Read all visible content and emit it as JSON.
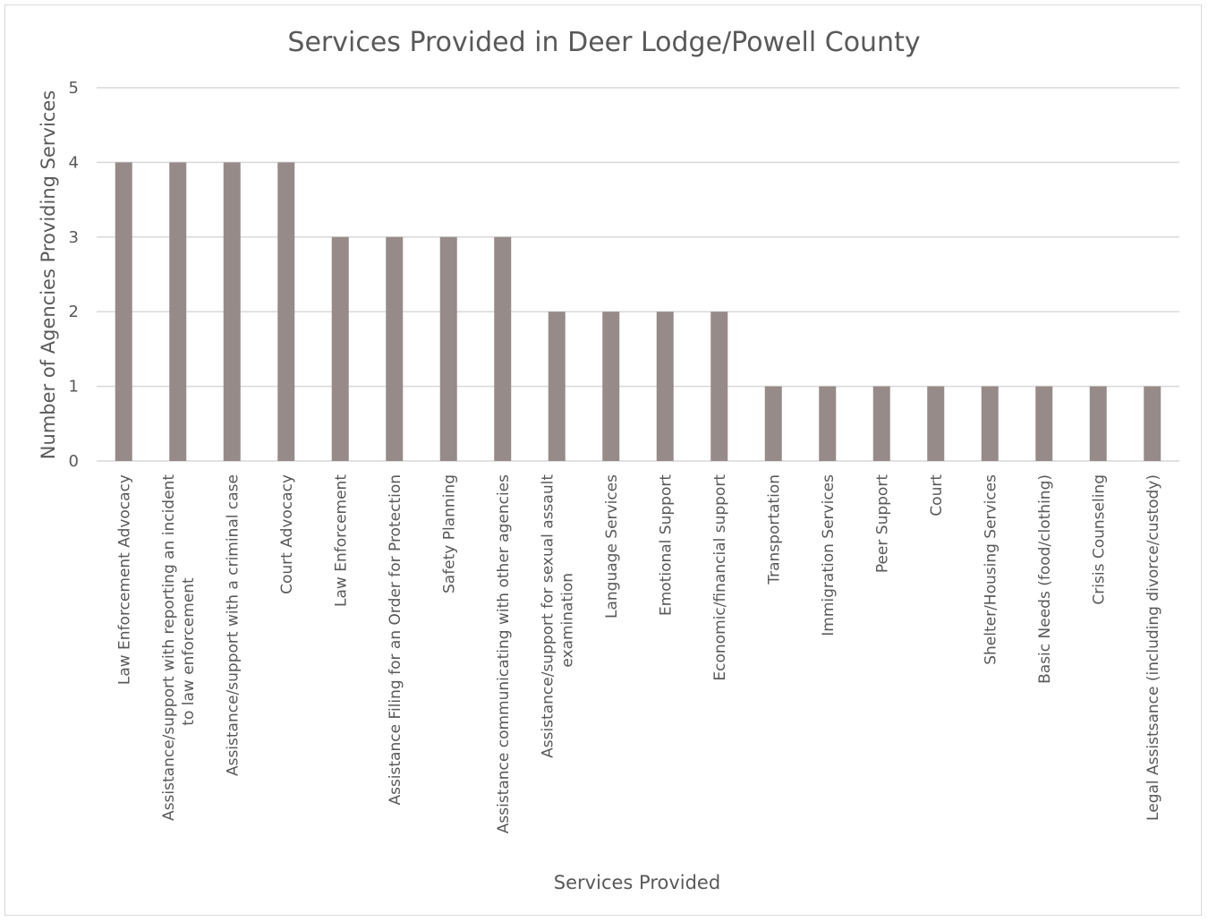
{
  "chart_data": {
    "type": "bar",
    "title": "Services Provided in Deer Lodge/Powell County",
    "xlabel": "Services Provided",
    "ylabel": "Number of Agencies Providing Services",
    "ylim": [
      0,
      5
    ],
    "yticks": [
      0,
      1,
      2,
      3,
      4,
      5
    ],
    "grid": true,
    "bar_color": "#968b88",
    "categories": [
      [
        "Law Enforcement Advocacy"
      ],
      [
        "Assistance/support with reporting an incident",
        "to law enforcement"
      ],
      [
        "Assistance/support with a criminal case"
      ],
      [
        "Court Advocacy"
      ],
      [
        "Law Enforcement"
      ],
      [
        "Assistance Filing for an Order for Protection"
      ],
      [
        "Safety Planning"
      ],
      [
        "Assistance communicating with other agencies"
      ],
      [
        "Assistance/support for sexual assault",
        "examination"
      ],
      [
        "Language Services"
      ],
      [
        "Emotional Support"
      ],
      [
        "Economic/financial support"
      ],
      [
        "Transportation"
      ],
      [
        "Immigration Services"
      ],
      [
        "Peer Support"
      ],
      [
        "Court"
      ],
      [
        "Shelter/Housing Services"
      ],
      [
        "Basic Needs (food/clothing)"
      ],
      [
        "Crisis Counseling"
      ],
      [
        "Legal Assistsance (including divorce/custody)"
      ]
    ],
    "values": [
      4,
      4,
      4,
      4,
      3,
      3,
      3,
      3,
      2,
      2,
      2,
      2,
      1,
      1,
      1,
      1,
      1,
      1,
      1,
      1
    ]
  }
}
